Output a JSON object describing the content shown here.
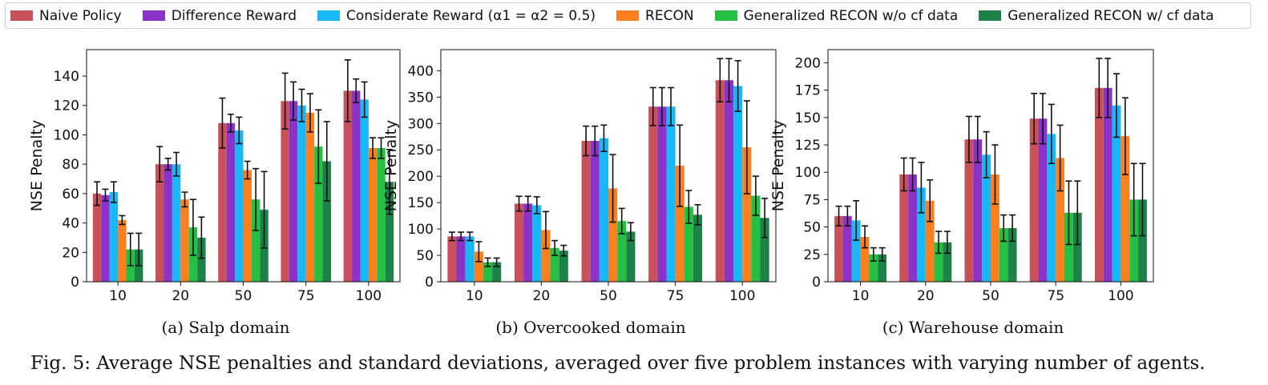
{
  "legend": {
    "items": [
      {
        "label": "Naive Policy",
        "color": "#c8515a"
      },
      {
        "label": "Difference Reward",
        "color": "#8b32c8"
      },
      {
        "label": "Considerate Reward (α1 = α2 = 0.5)",
        "color": "#18b7f5"
      },
      {
        "label": "RECON",
        "color": "#f97f1f"
      },
      {
        "label": "Generalized RECON w/o cf data",
        "color": "#25c043"
      },
      {
        "label": "Generalized RECON w/ cf data",
        "color": "#1e8248"
      }
    ]
  },
  "caption": "Fig. 5: Average NSE penalties and standard deviations, averaged over five problem instances with varying number of agents.",
  "chart_data": [
    {
      "type": "bar",
      "title": "(a) Salp domain",
      "xlabel": "",
      "ylabel": "NSE Penalty",
      "categories": [
        "10",
        "20",
        "50",
        "75",
        "100"
      ],
      "ylim": [
        0,
        158
      ],
      "yticks": [
        0,
        20,
        40,
        60,
        80,
        100,
        120,
        140
      ],
      "grid": false,
      "series": [
        {
          "name": "Naive Policy",
          "values": [
            60,
            80,
            108,
            123,
            130
          ],
          "errors": [
            8,
            12,
            17,
            19,
            21
          ]
        },
        {
          "name": "Difference Reward",
          "values": [
            59,
            80,
            108,
            123,
            130
          ],
          "errors": [
            4,
            4,
            6,
            13,
            8
          ]
        },
        {
          "name": "Considerate Reward",
          "values": [
            61,
            80,
            103,
            120,
            124
          ],
          "errors": [
            7,
            8,
            9,
            11,
            12
          ]
        },
        {
          "name": "RECON",
          "values": [
            42,
            56,
            76,
            115,
            91
          ],
          "errors": [
            3,
            5,
            6,
            13,
            7
          ]
        },
        {
          "name": "Generalized RECON w/o cf data",
          "values": [
            22,
            37,
            56,
            92,
            91
          ],
          "errors": [
            11,
            19,
            21,
            25,
            7
          ]
        },
        {
          "name": "Generalized RECON w/ cf data",
          "values": [
            22,
            30,
            49,
            82,
            68
          ],
          "errors": [
            11,
            14,
            26,
            27,
            22
          ]
        }
      ]
    },
    {
      "type": "bar",
      "title": "(b) Overcooked domain",
      "xlabel": "",
      "ylabel": "NSE Penalty",
      "categories": [
        "10",
        "20",
        "50",
        "75",
        "100"
      ],
      "ylim": [
        0,
        440
      ],
      "yticks": [
        0,
        50,
        100,
        150,
        200,
        250,
        300,
        350,
        400
      ],
      "grid": false,
      "series": [
        {
          "name": "Naive Policy",
          "values": [
            86,
            148,
            267,
            332,
            382
          ],
          "errors": [
            8,
            14,
            28,
            36,
            41
          ]
        },
        {
          "name": "Difference Reward",
          "values": [
            86,
            148,
            267,
            332,
            382
          ],
          "errors": [
            8,
            14,
            28,
            36,
            41
          ]
        },
        {
          "name": "Considerate Reward",
          "values": [
            86,
            145,
            272,
            332,
            371
          ],
          "errors": [
            8,
            16,
            25,
            36,
            48
          ]
        },
        {
          "name": "RECON",
          "values": [
            57,
            98,
            177,
            220,
            255
          ],
          "errors": [
            19,
            35,
            64,
            77,
            88
          ]
        },
        {
          "name": "Generalized RECON w/o cf data",
          "values": [
            37,
            64,
            115,
            142,
            163
          ],
          "errors": [
            8,
            14,
            24,
            31,
            37
          ]
        },
        {
          "name": "Generalized RECON w/ cf data",
          "values": [
            37,
            59,
            95,
            127,
            121
          ],
          "errors": [
            8,
            10,
            17,
            19,
            37
          ]
        }
      ]
    },
    {
      "type": "bar",
      "title": "(c) Warehouse domain",
      "xlabel": "",
      "ylabel": "NSE Penalty",
      "categories": [
        "10",
        "20",
        "50",
        "75",
        "100"
      ],
      "ylim": [
        0,
        212
      ],
      "yticks": [
        0,
        25,
        50,
        75,
        100,
        125,
        150,
        175,
        200
      ],
      "grid": false,
      "series": [
        {
          "name": "Naive Policy",
          "values": [
            60,
            98,
            130,
            149,
            177
          ],
          "errors": [
            9,
            15,
            21,
            23,
            27
          ]
        },
        {
          "name": "Difference Reward",
          "values": [
            60,
            98,
            130,
            149,
            177
          ],
          "errors": [
            9,
            15,
            21,
            23,
            27
          ]
        },
        {
          "name": "Considerate Reward",
          "values": [
            56,
            86,
            116,
            135,
            161
          ],
          "errors": [
            18,
            23,
            21,
            27,
            29
          ]
        },
        {
          "name": "RECON",
          "values": [
            41,
            74,
            98,
            113,
            133
          ],
          "errors": [
            10,
            19,
            27,
            30,
            35
          ]
        },
        {
          "name": "Generalized RECON w/o cf data",
          "values": [
            25,
            36,
            49,
            63,
            75
          ],
          "errors": [
            6,
            10,
            12,
            29,
            33
          ]
        },
        {
          "name": "Generalized RECON w/ cf data",
          "values": [
            25,
            36,
            49,
            63,
            75
          ],
          "errors": [
            6,
            10,
            12,
            29,
            33
          ]
        }
      ]
    }
  ]
}
